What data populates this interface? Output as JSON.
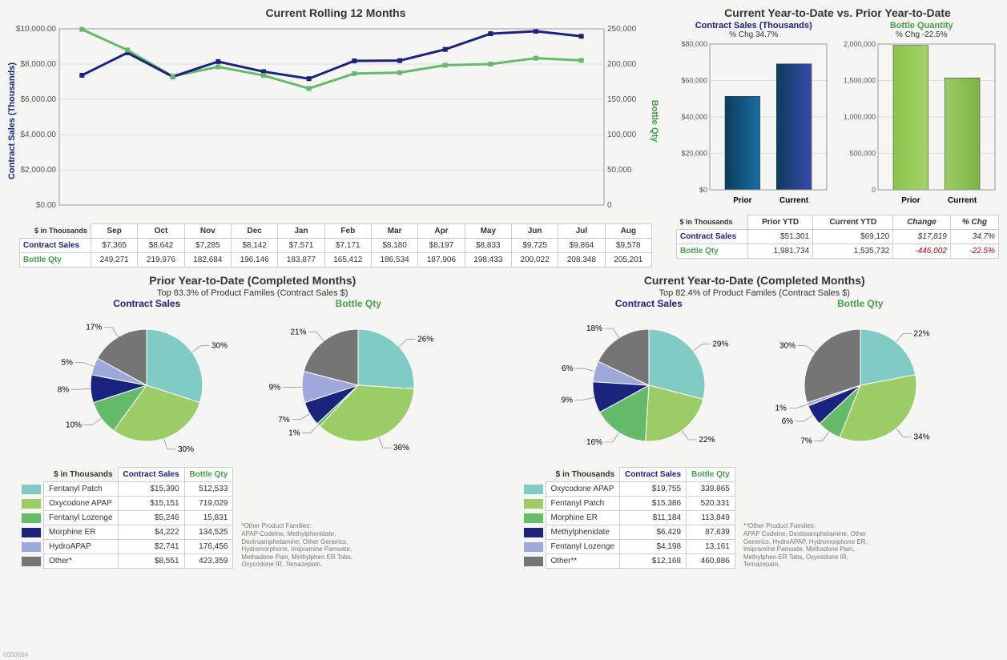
{
  "colors": {
    "contract_line": "#1a237e",
    "bottle_line": "#66bb6a",
    "grid": "#e0e0e0",
    "axis_text": "#666666",
    "contract_label": "#1a237e",
    "bottle_label": "#43a047",
    "bar_prior_fill": "#0b3d5c",
    "bar_prior_fill2": "#1a6fa3",
    "bar_current_fill": "#0b3d5c",
    "bar_current_fill2": "#3949ab",
    "bar_green1": "#8bc34a",
    "bar_green2": "#a5d46a",
    "pie_colors": [
      "#80cbc4",
      "#9ccc65",
      "#66bb6a",
      "#1a237e",
      "#9fa8da",
      "#757575"
    ],
    "negative": "#b00020"
  },
  "rolling": {
    "title": "Current Rolling 12 Months",
    "y1_label": "Contract Sales (Thousands)",
    "y2_label": "Bottle Qty",
    "y1_max": 10000,
    "y1_ticks": [
      "$0.00",
      "$2,000.00",
      "$4,000.00",
      "$6,000.00",
      "$8,000.00",
      "$10,000.00"
    ],
    "y2_max": 250000,
    "y2_ticks": [
      "0",
      "50,000",
      "100,000",
      "150,000",
      "200,000",
      "250,000"
    ],
    "months": [
      "Sep",
      "Oct",
      "Nov",
      "Dec",
      "Jan",
      "Feb",
      "Mar",
      "Apr",
      "May",
      "Jun",
      "Jul",
      "Aug"
    ],
    "contract_values": [
      7365,
      8642,
      7285,
      8142,
      7571,
      7171,
      8180,
      8197,
      8833,
      9725,
      9864,
      9578
    ],
    "contract_labels": [
      "$7,365",
      "$8,642",
      "$7,285",
      "$8,142",
      "$7,571",
      "$7,171",
      "$8,180",
      "$8,197",
      "$8,833",
      "$9,725",
      "$9,864",
      "$9,578"
    ],
    "bottle_values": [
      249271,
      219976,
      182684,
      196146,
      183877,
      165412,
      186534,
      187906,
      198433,
      200022,
      208348,
      205201
    ],
    "bottle_labels": [
      "249,271",
      "219,976",
      "182,684",
      "196,146",
      "183,877",
      "165,412",
      "186,534",
      "187,906",
      "198,433",
      "200,022",
      "208,348",
      "205,201"
    ],
    "table_corner": "$ in Thousands",
    "row1_hdr": "Contract Sales",
    "row2_hdr": "Bottle Qty"
  },
  "ytd": {
    "title": "Current Year-to-Date vs. Prior Year-to-Date",
    "contract": {
      "title": "Contract Sales (Thousands)",
      "pctchg_label": "% Chg 34.7%",
      "y_ticks": [
        "$0",
        "$20,000",
        "$40,000",
        "$60,000",
        "$80,000"
      ],
      "y_max": 80000,
      "prior": 51301,
      "current": 69120,
      "xlabels": [
        "Prior",
        "Current"
      ]
    },
    "bottle": {
      "title": "Bottle Quantity",
      "pctchg_label": "% Chg -22.5%",
      "y_ticks": [
        "0",
        "500,000",
        "1,000,000",
        "1,500,000",
        "2,000,000"
      ],
      "y_max": 2000000,
      "prior": 1981734,
      "current": 1535732,
      "xlabels": [
        "Prior",
        "Current"
      ]
    },
    "table": {
      "corner": "$ in Thousands",
      "cols": [
        "Prior YTD",
        "Current YTD",
        "Change",
        "% Chg"
      ],
      "rows": [
        {
          "hdr": "Contract Sales",
          "hdr_color": "#1a237e",
          "vals": [
            "$51,301",
            "$69,120",
            "$17,819",
            "34.7%"
          ],
          "italic_from": 2,
          "neg": false
        },
        {
          "hdr": "Bottle Qty",
          "hdr_color": "#43a047",
          "vals": [
            "1,981,734",
            "1,535,732",
            "-446,002",
            "-22.5%"
          ],
          "italic_from": 2,
          "neg": true
        }
      ]
    }
  },
  "pytd": {
    "title": "Prior Year-to-Date (Completed Months)",
    "subtitle": "Top 83.3% of Product Familes (Contract Sales $)",
    "contract_label": "Contract Sales",
    "bottle_label": "Bottle Qty",
    "pie_contract": {
      "pct": [
        30,
        30,
        10,
        8,
        5,
        17
      ],
      "labels": [
        "30%",
        "30%",
        "10%",
        "8%",
        "5%",
        "17%"
      ]
    },
    "pie_bottle": {
      "pct": [
        26,
        36,
        1,
        7,
        9,
        21
      ],
      "labels": [
        "26%",
        "36%",
        "1%",
        "7%",
        "9%",
        "21%"
      ]
    },
    "table": {
      "corner": "$ in Thousands",
      "cols": [
        "Contract Sales",
        "Bottle Qty"
      ],
      "col_colors": [
        "#1a237e",
        "#43a047"
      ],
      "rows": [
        {
          "name": "Fentanyl Patch",
          "c": "#80cbc4",
          "v": [
            "$15,390",
            "512,533"
          ]
        },
        {
          "name": "Oxycodone APAP",
          "c": "#9ccc65",
          "v": [
            "$15,151",
            "719,029"
          ]
        },
        {
          "name": "Fentanyl Lozenge",
          "c": "#66bb6a",
          "v": [
            "$5,246",
            "15,831"
          ]
        },
        {
          "name": "Morphine ER",
          "c": "#1a237e",
          "v": [
            "$4,222",
            "134,525"
          ]
        },
        {
          "name": "HydroAPAP",
          "c": "#9fa8da",
          "v": [
            "$2,741",
            "176,456"
          ]
        },
        {
          "name": "Other*",
          "c": "#757575",
          "v": [
            "$8,551",
            "423,359"
          ]
        }
      ]
    },
    "footnote_title": "*Other Product Families:",
    "footnote": "APAP Codeine, Methylphenidate, Dextroamphetamine, Other Generics, Hydromorphone, Imipramine Pamoate, Methadone Pain, Methylphen ER Tabs, Oxycodone IR, Temazepam."
  },
  "cytd": {
    "title": "Current Year-to-Date (Completed Months)",
    "subtitle": "Top 82.4% of Product Familes (Contract Sales $)",
    "contract_label": "Contract Sales",
    "bottle_label": "Bottle Qty",
    "pie_contract": {
      "pct": [
        29,
        22,
        16,
        9,
        6,
        18
      ],
      "labels": [
        "29%",
        "22%",
        "16%",
        "9%",
        "6%",
        "18%"
      ]
    },
    "pie_bottle": {
      "pct": [
        22,
        34,
        7,
        6,
        1,
        30
      ],
      "labels": [
        "22%",
        "34%",
        "7%",
        "6%",
        "1%",
        "30%"
      ]
    },
    "table": {
      "corner": "$ in Thousands",
      "cols": [
        "Contract Sales",
        "Bottle Qty"
      ],
      "col_colors": [
        "#1a237e",
        "#43a047"
      ],
      "rows": [
        {
          "name": "Oxycodone APAP",
          "c": "#80cbc4",
          "v": [
            "$19,755",
            "339,865"
          ]
        },
        {
          "name": "Fentanyl Patch",
          "c": "#9ccc65",
          "v": [
            "$15,386",
            "520,331"
          ]
        },
        {
          "name": "Morphine ER",
          "c": "#66bb6a",
          "v": [
            "$11,184",
            "113,849"
          ]
        },
        {
          "name": "Methylphenidate",
          "c": "#1a237e",
          "v": [
            "$6,429",
            "87,639"
          ]
        },
        {
          "name": "Fentanyl Lozenge",
          "c": "#9fa8da",
          "v": [
            "$4,198",
            "13,161"
          ]
        },
        {
          "name": "Other**",
          "c": "#757575",
          "v": [
            "$12,168",
            "460,886"
          ]
        }
      ]
    },
    "footnote_title": "**Other Product Families:",
    "footnote": "APAP Codeine, Dextroamphetamine, Other Generics, HydroAPAP, Hydromorphone ER, Imipramine Pamoate, Methadone Pain, Methylphen ER Tabs, Oxycodone IR, Temazepam."
  },
  "page_code": "0000694"
}
